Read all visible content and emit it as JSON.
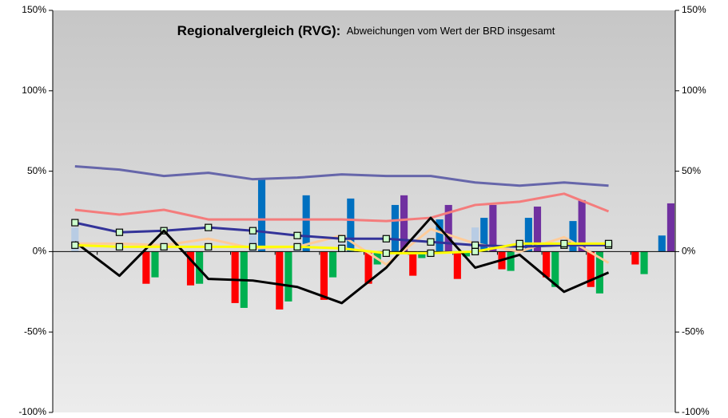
{
  "chart_data": {
    "type": "bar",
    "title": "Regionalvergleich (RVG):",
    "subtitle": "Abweichungen  vom Wert der BRD insgesamt",
    "categories": [
      null,
      null,
      null,
      null,
      null,
      null,
      null,
      null,
      null,
      null,
      null,
      null,
      null,
      null
    ],
    "ylim": [
      -100,
      150
    ],
    "yticks": [
      {
        "value": -100,
        "label": "-100%"
      },
      {
        "value": -50,
        "label": "-50%"
      },
      {
        "value": 0,
        "label": "0%"
      },
      {
        "value": 50,
        "label": "50%"
      },
      {
        "value": 100,
        "label": "100%"
      },
      {
        "value": 150,
        "label": "150%"
      }
    ],
    "y2lim": [
      -100,
      150
    ],
    "y2ticks": [
      {
        "value": -100,
        "label": "-100%"
      },
      {
        "value": -50,
        "label": "-50%"
      },
      {
        "value": 0,
        "label": "0%"
      },
      {
        "value": 50,
        "label": "50%"
      },
      {
        "value": 100,
        "label": "100%"
      },
      {
        "value": 150,
        "label": "150%"
      }
    ],
    "grid": false,
    "series": [
      {
        "type": "bar",
        "color": "#ff0000",
        "values": [
          null,
          null,
          -20,
          -21,
          -32,
          -36,
          -30,
          -20,
          -15,
          -17,
          -11,
          -16,
          -22,
          -8
        ]
      },
      {
        "type": "bar",
        "color": "#00b050",
        "values": [
          null,
          null,
          -16,
          -20,
          -35,
          -31,
          -16,
          -8,
          -4,
          -3,
          -12,
          -22,
          -26,
          -14
        ]
      },
      {
        "type": "bar",
        "color": "#b8cce4",
        "values": [
          15,
          null,
          null,
          null,
          12,
          5,
          5,
          null,
          null,
          15,
          null,
          null,
          null,
          null
        ]
      },
      {
        "type": "bar",
        "color": "#0070c0",
        "values": [
          null,
          null,
          null,
          null,
          45,
          35,
          33,
          29,
          20,
          21,
          21,
          19,
          null,
          10
        ]
      },
      {
        "type": "bar",
        "color": "#7030a0",
        "values": [
          null,
          null,
          null,
          null,
          null,
          null,
          null,
          35,
          29,
          29,
          28,
          32,
          null,
          30
        ]
      },
      {
        "type": "line",
        "color": "#6666aa",
        "values": [
          53,
          51,
          47,
          49,
          45,
          46,
          48,
          47,
          47,
          43,
          41,
          43,
          41,
          null
        ]
      },
      {
        "type": "line",
        "color": "#f47c7c",
        "values": [
          26,
          23,
          26,
          20,
          20,
          20,
          20,
          19,
          21,
          29,
          31,
          36,
          25,
          null
        ]
      },
      {
        "type": "line",
        "color": "#ffcc99",
        "values": [
          5,
          5,
          4,
          8,
          2,
          3,
          10,
          -8,
          14,
          5,
          0,
          9,
          -7,
          null
        ]
      },
      {
        "type": "line",
        "color": "#333399",
        "marker": true,
        "values": [
          18,
          12,
          13,
          15,
          13,
          10,
          8,
          8,
          6,
          4,
          3,
          4,
          4,
          null
        ]
      },
      {
        "type": "line",
        "color": "#000000",
        "values": [
          6,
          -15,
          13,
          -17,
          -18,
          -22,
          -32,
          -10,
          21,
          -10,
          -2,
          -25,
          -13,
          null
        ]
      },
      {
        "type": "line",
        "color": "#ffff00",
        "marker": true,
        "values": [
          4,
          3,
          3,
          3,
          3,
          3,
          2,
          -1,
          -1,
          0,
          5,
          5,
          5,
          null
        ]
      }
    ]
  }
}
